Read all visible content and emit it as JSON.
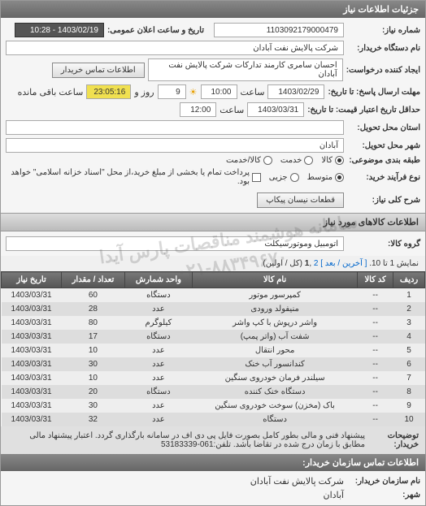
{
  "header": {
    "title": "جزئیات اطلاعات نیاز"
  },
  "form": {
    "request_no_label": "شماره نیاز:",
    "request_no": "1103092179000479",
    "announce_label": "تاریخ و ساعت اعلان عمومی:",
    "announce_value": "1403/02/19 - 10:28",
    "buyer_org_label": "نام دستگاه خریدار:",
    "buyer_org": "شرکت پالایش نفت آبادان",
    "requester_label": "ایجاد کننده درخواست:",
    "requester": "احسان سامری کارمند تدارکات شرکت پالایش نفت آبادان",
    "contact_label": "اطلاعات تماس خریدار",
    "deadline_label": "مهلت ارسال پاسخ: تا تاریخ:",
    "deadline_date": "1403/02/29",
    "time_label": "ساعت",
    "deadline_time": "10:00",
    "sunrise_icon": "خورشید",
    "remain_days": "9",
    "remain_days_label": "روز و",
    "remain_time": "23:05:16",
    "remain_suffix": "ساعت باقی مانده",
    "credit_label": "حداقل تاریخ اعتبار قیمت: تا تاریخ:",
    "credit_date": "1403/03/31",
    "credit_time": "12:00",
    "province_label": "استان محل تحویل:",
    "city_label": "شهر محل تحویل:",
    "city": "آبادان",
    "budget_type_label": "طبقه بندی موضوعی:",
    "budget_opts": {
      "goods": "کالا",
      "service": "خدمت",
      "both": "کالا/خدمت"
    },
    "process_label": "نوع فرآیند خرید:",
    "process_opts": {
      "medium": "متوسط",
      "partial": "جزیی"
    },
    "process_note": "پرداخت تمام یا بخشی از مبلغ خرید،از محل \"اسناد خزانه اسلامی\" خواهد بود.",
    "overview_label": "شرح کلی نیاز:",
    "overview_btn": "قطعات نیسان پیکاپ"
  },
  "items_section": {
    "title": "اطلاعات کالاهای مورد نیاز",
    "group_label": "گروه کالا:",
    "group_value": "اتومبیل وموتورسیکلت",
    "pager_text": "نمایش 1 تا 10.",
    "pager_links": {
      "first": "[ آخرین",
      "next": "/ بعد ]",
      "p2": "2",
      "p1": "1",
      "format": "(کل / اولین)"
    },
    "columns": [
      "ردیف",
      "کد کالا",
      "نام کالا",
      "واحد شمارش",
      "تعداد / مقدار",
      "تاریخ نیاز"
    ],
    "rows": [
      [
        "1",
        "--",
        "کمپرسور موتور",
        "دستگاه",
        "60",
        "1403/03/31"
      ],
      [
        "2",
        "--",
        "منیفولد ورودی",
        "عدد",
        "28",
        "1403/03/31"
      ],
      [
        "3",
        "--",
        "واشر درپوش با کپ واشر",
        "کیلوگرم",
        "80",
        "1403/03/31"
      ],
      [
        "4",
        "--",
        "شفت آب (واتر پمپ)",
        "دستگاه",
        "17",
        "1403/03/31"
      ],
      [
        "5",
        "--",
        "محور انتقال",
        "عدد",
        "10",
        "1403/03/31"
      ],
      [
        "6",
        "--",
        "کندانسور آب خنک",
        "عدد",
        "30",
        "1403/03/31"
      ],
      [
        "7",
        "--",
        "سیلندر فرمان خودروی سنگین",
        "عدد",
        "10",
        "1403/03/31"
      ],
      [
        "8",
        "--",
        "دستگاه خنک کننده",
        "دستگاه",
        "20",
        "1403/03/31"
      ],
      [
        "9",
        "--",
        "باک (مخزن) سوخت خودروی سنگین",
        "عدد",
        "30",
        "1403/03/31"
      ],
      [
        "10",
        "--",
        "دستگاه",
        "عدد",
        "32",
        "1403/03/31"
      ]
    ]
  },
  "note": {
    "label": "توضیحات خریدار:",
    "text": "پیشنهاد فنی و مالی بطور کامل بصورت فایل پی دی اف در سامانه بارگذاری گردد. اعتبار پیشنهاد مالی مطابق با زمان درج شده در تقاضا باشد. تلفن:061-53183339"
  },
  "footer": {
    "title": "اطلاعات تماس سازمان خریدار:",
    "org_label": "نام سازمان خریدار:",
    "org": "شرکت پالایش نفت آبادان",
    "city_label": "شهر:",
    "city": "آبادان"
  },
  "watermark": {
    "line1": "سامانه هوشمند مناقصات پارس آیدا",
    "line2": "۰۲۱-۸۸۳۴۹۶۷۰"
  },
  "colors": {
    "header_bg": "#777777",
    "header_fg": "#ffffff",
    "row_odd": "#eeeeee",
    "row_even": "#dddddd",
    "dark_box": "#555555",
    "yellow_box": "#f0e050"
  }
}
